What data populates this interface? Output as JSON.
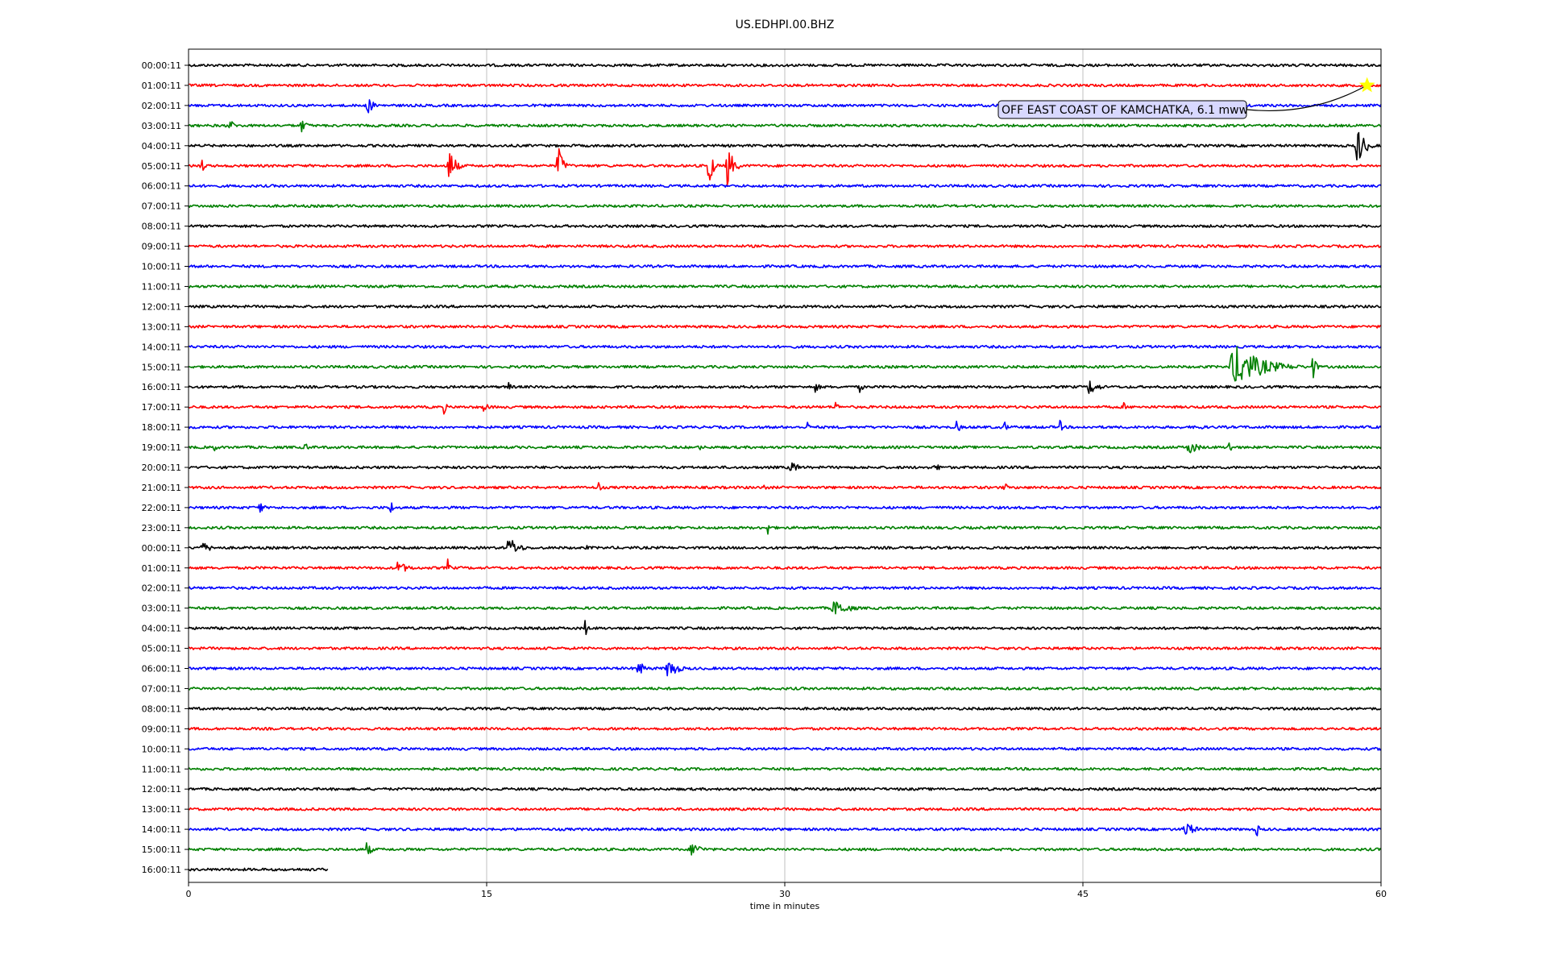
{
  "chart_data": {
    "type": "line",
    "title": "US.EDHPI.00.BHZ",
    "xlabel": "time in minutes",
    "ylabel": "",
    "xlim": [
      0,
      60
    ],
    "x_ticks": [
      0,
      15,
      30,
      45,
      60
    ],
    "x_tick_labels": [
      "0",
      "15",
      "30",
      "45",
      "60"
    ],
    "grid": "vertical",
    "row_colors": [
      "#000000",
      "#ff0000",
      "#0000ff",
      "#008000"
    ],
    "rows": [
      {
        "label": "00:00:11",
        "color": "#000000",
        "end": 60,
        "events": []
      },
      {
        "label": "01:00:11",
        "color": "#ff0000",
        "end": 60,
        "events": []
      },
      {
        "label": "02:00:11",
        "color": "#0000ff",
        "end": 60,
        "events": [
          {
            "t": 8.9,
            "amp": 0.35,
            "dur": 1.2
          }
        ]
      },
      {
        "label": "03:00:11",
        "color": "#008000",
        "end": 60,
        "events": [
          {
            "t": 2.0,
            "amp": 0.3,
            "dur": 0.8
          },
          {
            "t": 5.6,
            "amp": 0.3,
            "dur": 1.0
          }
        ]
      },
      {
        "label": "04:00:11",
        "color": "#000000",
        "end": 60,
        "events": [
          {
            "t": 58.7,
            "amp": 0.9,
            "dur": 1.2
          }
        ]
      },
      {
        "label": "05:00:11",
        "color": "#ff0000",
        "end": 60,
        "events": [
          {
            "t": 0.5,
            "amp": 0.4,
            "dur": 0.8
          },
          {
            "t": 13.0,
            "amp": 0.9,
            "dur": 1.0
          },
          {
            "t": 18.5,
            "amp": 1.0,
            "dur": 0.8
          },
          {
            "t": 26.1,
            "amp": 1.3,
            "dur": 0.6
          },
          {
            "t": 27.0,
            "amp": 1.0,
            "dur": 1.0
          }
        ]
      },
      {
        "label": "06:00:11",
        "color": "#0000ff",
        "end": 60,
        "events": []
      },
      {
        "label": "07:00:11",
        "color": "#008000",
        "end": 60,
        "events": []
      },
      {
        "label": "08:00:11",
        "color": "#000000",
        "end": 60,
        "events": []
      },
      {
        "label": "09:00:11",
        "color": "#ff0000",
        "end": 60,
        "events": []
      },
      {
        "label": "10:00:11",
        "color": "#0000ff",
        "end": 60,
        "events": []
      },
      {
        "label": "11:00:11",
        "color": "#008000",
        "end": 60,
        "events": []
      },
      {
        "label": "12:00:11",
        "color": "#000000",
        "end": 60,
        "events": []
      },
      {
        "label": "13:00:11",
        "color": "#ff0000",
        "end": 60,
        "events": []
      },
      {
        "label": "14:00:11",
        "color": "#0000ff",
        "end": 60,
        "events": []
      },
      {
        "label": "15:00:11",
        "color": "#008000",
        "end": 60,
        "events": [
          {
            "t": 52.3,
            "amp": 0.9,
            "dur": 4.5
          },
          {
            "t": 56.5,
            "amp": 0.6,
            "dur": 0.6
          }
        ]
      },
      {
        "label": "16:00:11",
        "color": "#000000",
        "end": 60,
        "events": [
          {
            "t": 16.0,
            "amp": 0.3,
            "dur": 0.6
          },
          {
            "t": 31.5,
            "amp": 0.3,
            "dur": 0.6
          },
          {
            "t": 33.7,
            "amp": 0.35,
            "dur": 0.5
          },
          {
            "t": 45.2,
            "amp": 0.35,
            "dur": 1.5
          }
        ]
      },
      {
        "label": "17:00:11",
        "color": "#ff0000",
        "end": 60,
        "events": [
          {
            "t": 12.8,
            "amp": 0.3,
            "dur": 0.5
          },
          {
            "t": 14.8,
            "amp": 0.25,
            "dur": 0.8
          },
          {
            "t": 32.5,
            "amp": 0.4,
            "dur": 0.4
          },
          {
            "t": 47.0,
            "amp": 0.25,
            "dur": 0.4
          }
        ]
      },
      {
        "label": "18:00:11",
        "color": "#0000ff",
        "end": 60,
        "events": [
          {
            "t": 31.1,
            "amp": 0.25,
            "dur": 0.4
          },
          {
            "t": 38.6,
            "amp": 0.3,
            "dur": 0.6
          },
          {
            "t": 41.0,
            "amp": 0.3,
            "dur": 0.5
          },
          {
            "t": 43.8,
            "amp": 0.3,
            "dur": 0.5
          },
          {
            "t": 50.8,
            "amp": 0.25,
            "dur": 0.5
          }
        ]
      },
      {
        "label": "19:00:11",
        "color": "#008000",
        "end": 60,
        "events": [
          {
            "t": 1.2,
            "amp": 0.3,
            "dur": 0.5
          },
          {
            "t": 5.8,
            "amp": 0.25,
            "dur": 0.6
          },
          {
            "t": 25.7,
            "amp": 0.25,
            "dur": 0.4
          },
          {
            "t": 50.2,
            "amp": 0.35,
            "dur": 1.5
          },
          {
            "t": 52.3,
            "amp": 0.35,
            "dur": 0.5
          }
        ]
      },
      {
        "label": "20:00:11",
        "color": "#000000",
        "end": 60,
        "events": [
          {
            "t": 30.2,
            "amp": 0.25,
            "dur": 1.5
          },
          {
            "t": 37.5,
            "amp": 0.25,
            "dur": 0.8
          }
        ]
      },
      {
        "label": "21:00:11",
        "color": "#ff0000",
        "end": 60,
        "events": [
          {
            "t": 20.6,
            "amp": 0.3,
            "dur": 0.4
          },
          {
            "t": 28.8,
            "amp": 0.25,
            "dur": 0.6
          },
          {
            "t": 41.0,
            "amp": 0.35,
            "dur": 0.4
          }
        ]
      },
      {
        "label": "22:00:11",
        "color": "#0000ff",
        "end": 60,
        "events": [
          {
            "t": 3.5,
            "amp": 0.4,
            "dur": 0.6
          },
          {
            "t": 10.1,
            "amp": 0.35,
            "dur": 0.6
          }
        ]
      },
      {
        "label": "23:00:11",
        "color": "#008000",
        "end": 60,
        "events": [
          {
            "t": 29.1,
            "amp": 0.3,
            "dur": 0.6
          }
        ]
      },
      {
        "label": "00:00:11",
        "color": "#000000",
        "end": 60,
        "events": [
          {
            "t": 0.5,
            "amp": 0.25,
            "dur": 1.8
          },
          {
            "t": 16.0,
            "amp": 0.5,
            "dur": 1.5
          },
          {
            "t": 20.0,
            "amp": 0.2,
            "dur": 0.3
          }
        ]
      },
      {
        "label": "01:00:11",
        "color": "#ff0000",
        "end": 60,
        "events": [
          {
            "t": 10.3,
            "amp": 0.3,
            "dur": 2.0
          },
          {
            "t": 13.0,
            "amp": 0.4,
            "dur": 0.4
          }
        ]
      },
      {
        "label": "02:00:11",
        "color": "#0000ff",
        "end": 60,
        "events": []
      },
      {
        "label": "03:00:11",
        "color": "#008000",
        "end": 60,
        "events": [
          {
            "t": 32.3,
            "amp": 0.35,
            "dur": 2.5
          }
        ]
      },
      {
        "label": "04:00:11",
        "color": "#000000",
        "end": 60,
        "events": [
          {
            "t": 19.9,
            "amp": 0.5,
            "dur": 0.4
          }
        ]
      },
      {
        "label": "05:00:11",
        "color": "#ff0000",
        "end": 60,
        "events": []
      },
      {
        "label": "06:00:11",
        "color": "#0000ff",
        "end": 60,
        "events": [
          {
            "t": 22.5,
            "amp": 0.35,
            "dur": 1.2
          },
          {
            "t": 24.0,
            "amp": 0.5,
            "dur": 1.5
          }
        ]
      },
      {
        "label": "07:00:11",
        "color": "#008000",
        "end": 60,
        "events": []
      },
      {
        "label": "08:00:11",
        "color": "#000000",
        "end": 60,
        "events": []
      },
      {
        "label": "09:00:11",
        "color": "#ff0000",
        "end": 60,
        "events": []
      },
      {
        "label": "10:00:11",
        "color": "#0000ff",
        "end": 60,
        "events": []
      },
      {
        "label": "11:00:11",
        "color": "#008000",
        "end": 60,
        "events": []
      },
      {
        "label": "12:00:11",
        "color": "#000000",
        "end": 60,
        "events": []
      },
      {
        "label": "13:00:11",
        "color": "#ff0000",
        "end": 60,
        "events": []
      },
      {
        "label": "14:00:11",
        "color": "#0000ff",
        "end": 60,
        "events": [
          {
            "t": 50.0,
            "amp": 0.4,
            "dur": 1.5
          },
          {
            "t": 53.7,
            "amp": 0.4,
            "dur": 0.4
          }
        ]
      },
      {
        "label": "15:00:11",
        "color": "#008000",
        "end": 60,
        "events": [
          {
            "t": 8.9,
            "amp": 0.35,
            "dur": 0.8
          },
          {
            "t": 25.2,
            "amp": 0.35,
            "dur": 1.5
          }
        ]
      },
      {
        "label": "16:00:11",
        "color": "#000000",
        "end": 7,
        "events": []
      }
    ],
    "annotation": {
      "text": "OFF EAST COAST OF KAMCHATKA, 6.1 mww",
      "event_row": 1,
      "event_t": 59.3,
      "marker": "star",
      "marker_color": "#ffff00",
      "box_color": "#d8d8ff"
    }
  }
}
